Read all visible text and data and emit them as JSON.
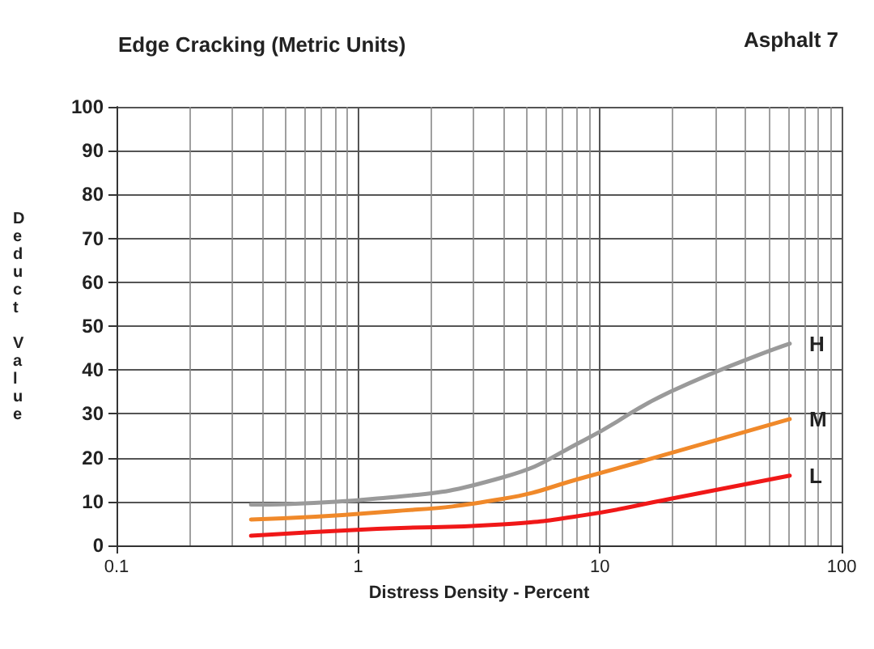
{
  "chart_data": {
    "type": "line",
    "title": "Edge Cracking (Metric Units)",
    "annotations": [
      "Asphalt 7"
    ],
    "xlabel": "Distress Density - Percent",
    "ylabel": "Deduct Value",
    "log": "x",
    "xlim": [
      0.1,
      100
    ],
    "xticks": [
      0.1,
      1,
      10,
      100
    ],
    "ylim": [
      0,
      100
    ],
    "yticks": [
      0,
      10,
      20,
      30,
      40,
      50,
      60,
      70,
      80,
      90,
      100
    ],
    "grid": true,
    "legend": false,
    "marker": "none",
    "line_style": "solid",
    "series": [
      {
        "name": "H",
        "color": "#9a9a9a",
        "x": [
          0.36,
          1.2,
          3.95,
          8.6,
          19.5,
          61
        ],
        "values": [
          9.3,
          10.7,
          15.5,
          24,
          35,
          46
        ]
      },
      {
        "name": "M",
        "color": "#f0892a",
        "x": [
          0.36,
          1.2,
          3.95,
          8.6,
          19.5,
          61
        ],
        "values": [
          5.9,
          7.5,
          10.6,
          15.5,
          21,
          28.8
        ]
      },
      {
        "name": "L",
        "color": "#f01818",
        "x": [
          0.36,
          1.2,
          3.95,
          8.6,
          19.5,
          61
        ],
        "values": [
          2.2,
          3.8,
          4.8,
          6.9,
          10.6,
          15.9
        ]
      }
    ]
  }
}
